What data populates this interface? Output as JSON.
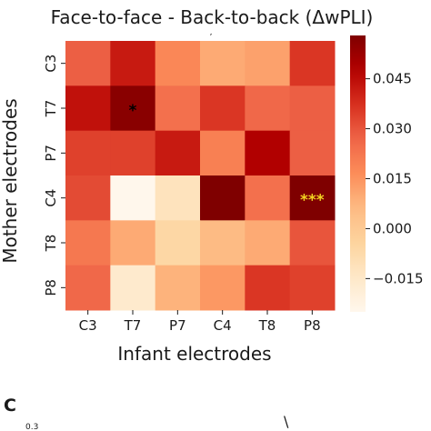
{
  "chart_data": {
    "type": "heatmap",
    "title": "Face-to-face  -  Back-to-back (ΔwPLI)",
    "xlabel": "Infant electrodes",
    "ylabel": "Mother electrodes",
    "x_categories": [
      "C3",
      "T7",
      "P7",
      "C4",
      "T8",
      "P8"
    ],
    "y_categories": [
      "C3",
      "T7",
      "P7",
      "C4",
      "T8",
      "P8"
    ],
    "values": [
      [
        0.028,
        0.042,
        0.018,
        0.01,
        0.012,
        0.036
      ],
      [
        0.044,
        0.056,
        0.024,
        0.036,
        0.026,
        0.028
      ],
      [
        0.034,
        0.034,
        0.042,
        0.02,
        0.048,
        0.028
      ],
      [
        0.032,
        -0.025,
        -0.012,
        0.058,
        0.024,
        0.058
      ],
      [
        0.022,
        0.01,
        -0.006,
        0.006,
        0.01,
        0.03
      ],
      [
        0.026,
        -0.016,
        0.008,
        0.014,
        0.036,
        0.034
      ]
    ],
    "vmin": -0.025,
    "vmax": 0.058,
    "colormap": "OrRd",
    "colorbar": {
      "ticks": [
        -0.015,
        0.0,
        0.015,
        0.03,
        0.045
      ],
      "tick_labels": [
        "−0.015",
        "0.000",
        "0.015",
        "0.030",
        "0.045"
      ]
    },
    "annotations": [
      {
        "row": 1,
        "col": 1,
        "text": "*",
        "color": "#000000"
      },
      {
        "row": 3,
        "col": 5,
        "text": "***",
        "color": "#f2d321"
      }
    ]
  },
  "panel_c": {
    "label": "C",
    "y_tick_fragment": "0.3",
    "title_fragment": "\\"
  }
}
